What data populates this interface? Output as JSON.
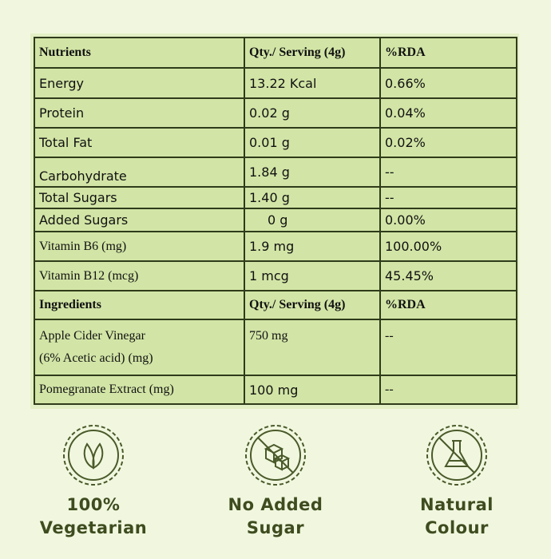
{
  "table": {
    "rows": [
      [
        "Nutrients",
        "Qty./ Serving (4g)",
        "%RDA"
      ],
      [
        "Energy",
        "13.22 Kcal",
        "0.66%"
      ],
      [
        "Protein",
        "0.02 g",
        "0.04%"
      ],
      [
        "Total Fat",
        "0.01 g",
        "0.02%"
      ],
      [
        "Carbohydrate",
        "1.84 g",
        "--"
      ],
      [
        "Total Sugars",
        "1.40 g",
        "--"
      ],
      [
        "Added Sugars",
        "0 g",
        "0.00%"
      ],
      [
        "Vitamin B6 (mg)",
        "1.9 mg",
        "100.00%"
      ],
      [
        "Vitamin B12 (mcg)",
        "1 mcg",
        "45.45%"
      ],
      [
        "Ingredients",
        "Qty./ Serving (4g)",
        "%RDA"
      ],
      [
        [
          "Apple Cider Vinegar",
          "(6% Acetic acid) (mg)"
        ],
        "750 mg",
        "--"
      ],
      [
        "Pomegranate Extract (mg)",
        "100 mg",
        "--"
      ]
    ]
  },
  "badges": [
    {
      "lines": [
        "100%",
        "Vegetarian"
      ]
    },
    {
      "lines": [
        "No Added",
        "Sugar"
      ]
    },
    {
      "lines": [
        "Natural",
        "Colour"
      ]
    }
  ]
}
